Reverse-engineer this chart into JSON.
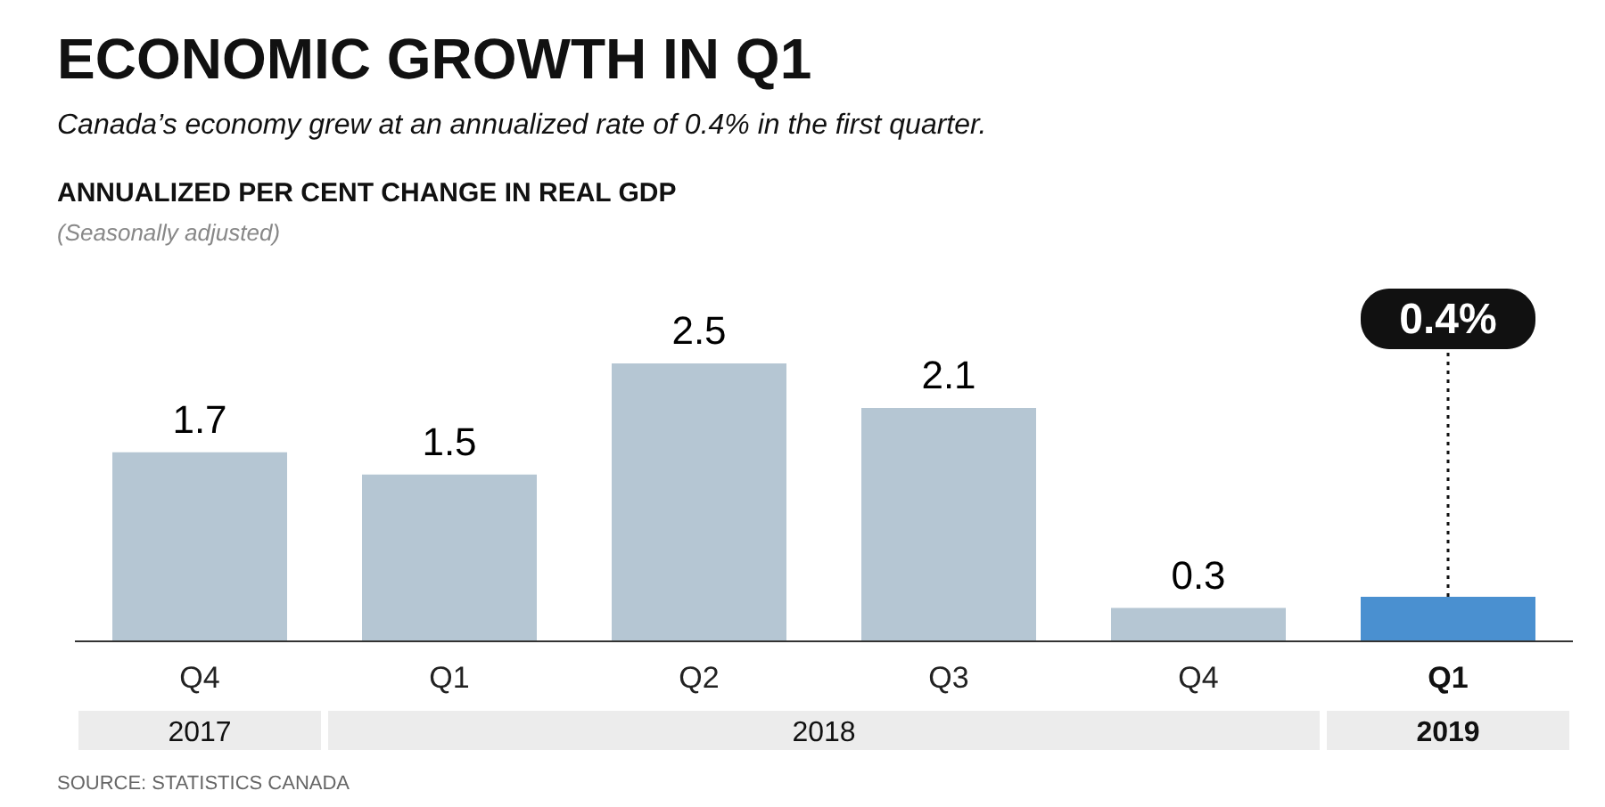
{
  "chart_data": {
    "type": "bar",
    "title": "ECONOMIC GROWTH IN Q1",
    "subtitle": "Canada’s economy grew at an annualized rate of 0.4% in the first quarter.",
    "categories": [
      "Q4",
      "Q1",
      "Q2",
      "Q3",
      "Q4",
      "Q1"
    ],
    "values": [
      1.7,
      1.5,
      2.5,
      2.1,
      0.3,
      0.4
    ],
    "colors": [
      "#b5c6d3",
      "#b5c6d3",
      "#b5c6d3",
      "#b5c6d3",
      "#b5c6d3",
      "#4a90d0"
    ],
    "value_labels": [
      "1.7",
      "1.5",
      "2.5",
      "2.1",
      "0.3",
      null
    ],
    "annotations": [
      "ANNUALIZED PER CENT CHANGE IN REAL GDP",
      "(Seasonally adjusted)",
      "2017",
      "2018",
      "2019",
      "SOURCE: STATISTICS CANADA",
      "0.4%"
    ]
  }
}
